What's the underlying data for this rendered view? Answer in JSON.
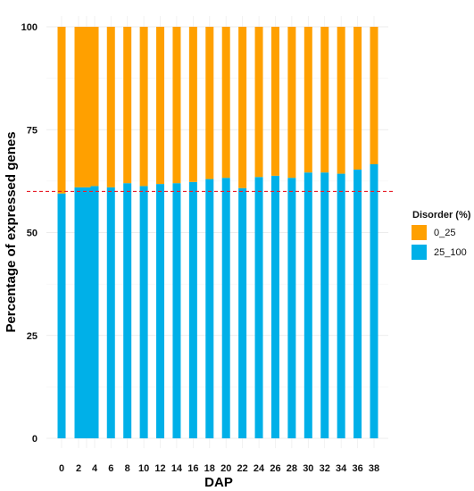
{
  "chart_data": {
    "type": "bar",
    "stacked": true,
    "percent": true,
    "categories": [
      "0",
      "2",
      "3",
      "4",
      "6",
      "8",
      "10",
      "12",
      "14",
      "16",
      "18",
      "20",
      "22",
      "24",
      "26",
      "28",
      "30",
      "32",
      "34",
      "36",
      "38"
    ],
    "x_tick_labels": [
      "0",
      "2",
      "4",
      "6",
      "8",
      "10",
      "12",
      "14",
      "16",
      "18",
      "20",
      "22",
      "24",
      "26",
      "28",
      "30",
      "32",
      "34",
      "36",
      "38"
    ],
    "series": [
      {
        "name": "25_100",
        "color": "#00b0e8",
        "values": [
          59.5,
          61.0,
          61.0,
          61.3,
          61.0,
          62.0,
          61.3,
          61.8,
          62.0,
          62.3,
          63.0,
          63.3,
          60.8,
          63.5,
          63.8,
          63.3,
          64.6,
          64.6,
          64.3,
          65.3,
          66.6
        ]
      },
      {
        "name": "0_25",
        "color": "#ffa000",
        "values": [
          40.5,
          39.0,
          39.0,
          38.7,
          39.0,
          38.0,
          38.7,
          38.2,
          38.0,
          37.7,
          37.0,
          36.7,
          39.2,
          36.5,
          36.2,
          36.7,
          35.4,
          35.4,
          35.7,
          34.7,
          33.4
        ]
      }
    ],
    "ylim": [
      0,
      100
    ],
    "y_ticks": [
      0,
      25,
      50,
      75,
      100
    ],
    "reference_line": {
      "y": 60,
      "color": "#e8202a",
      "style": "dashed"
    },
    "xlabel": "DAP",
    "ylabel": "Percentage of expressed genes",
    "legend": {
      "title": "Disorder (%)",
      "position": "right",
      "entries": [
        "0_25",
        "25_100"
      ]
    },
    "grid": true
  }
}
